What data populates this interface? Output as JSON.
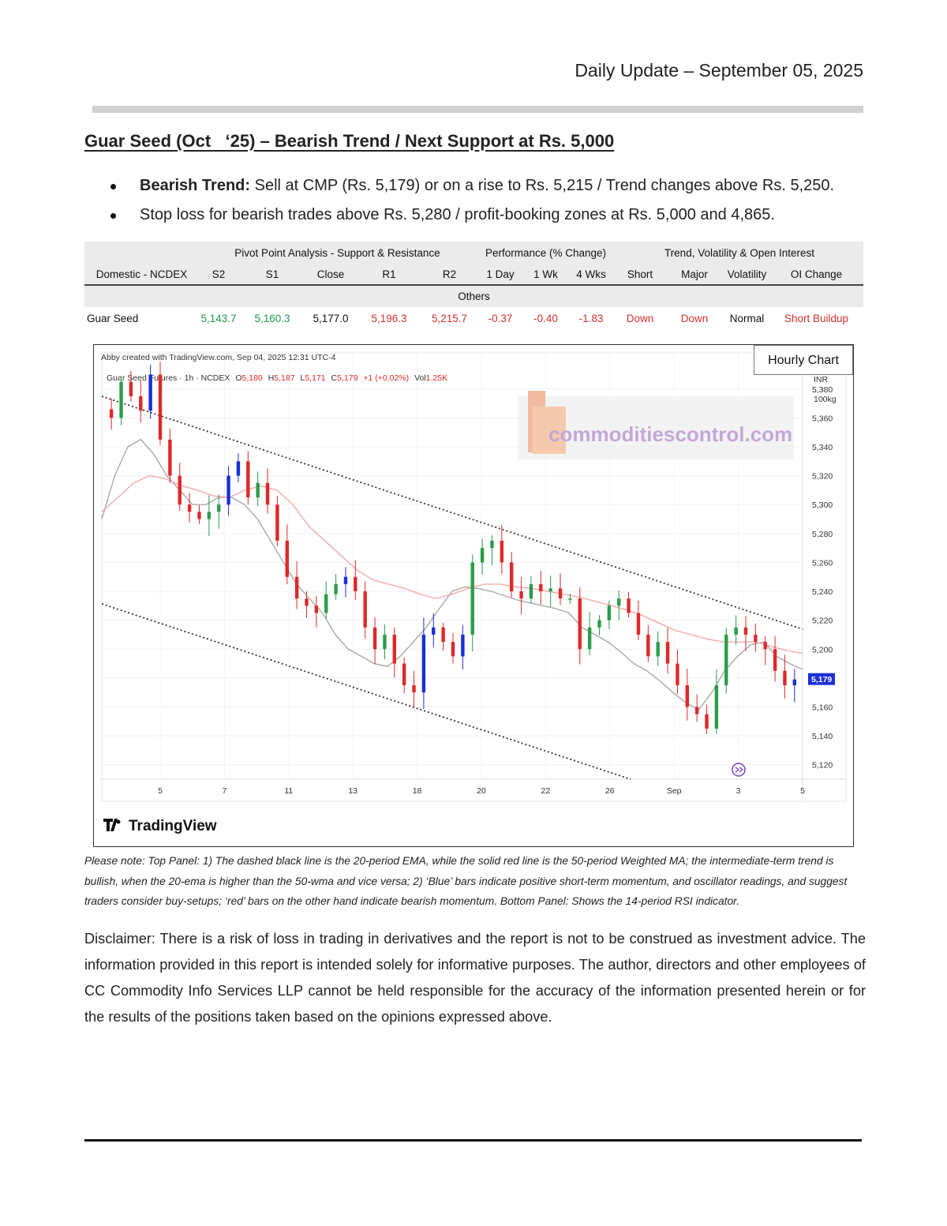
{
  "header": {
    "date_text": "Daily Update – September 05, 2025"
  },
  "title": "Guar Seed (Oct   ‘25) – Bearish Trend / Next Support at Rs. 5,000",
  "bullets": [
    {
      "bold": "Bearish Trend:",
      "text": " Sell at CMP (Rs. 5,179) or on a rise to Rs. 5,215 / Trend changes above Rs. 5,250."
    },
    {
      "bold": "",
      "text": "Stop loss for bearish trades above Rs. 5,280 / profit-booking zones at Rs. 5,000 and 4,865."
    }
  ],
  "table": {
    "groups": {
      "pivot": "Pivot Point Analysis - Support & Resistance",
      "performance": "Performance (% Change)",
      "trend": "Trend, Volatility & Open Interest"
    },
    "headers": [
      "Domestic - NCDEX",
      "S2",
      "S1",
      "Close",
      "R1",
      "R2",
      "1 Day",
      "1 Wk",
      "4 Wks",
      "Short",
      "Major",
      "Volatility",
      "OI Change"
    ],
    "category": "Others",
    "row": [
      "Guar Seed",
      "5,143.7",
      "5,160.3",
      "5,177.0",
      "5,196.3",
      "5,215.7",
      "-0.37",
      "-0.40",
      "-1.83",
      "Down",
      "Down",
      "Normal",
      "Short Buildup"
    ],
    "colors": {
      "positive": "#1e9a4a",
      "negative": "#d0312d"
    }
  },
  "chart": {
    "attribution": "Abby created with TradingView.com, Sep 04, 2025 12:31 UTC-4",
    "legend": {
      "symbol": "Guar Seed Futures · 1h · NCDEX",
      "o_label": "O",
      "o": "5,180",
      "h_label": "H",
      "h": "5,187",
      "l_label": "L",
      "l": "5,171",
      "c_label": "C",
      "c": "5,179",
      "change": "+1 (+0.02%)",
      "vol_label": "Vol",
      "vol": "1.25K"
    },
    "currency": "INR",
    "unit": "100kg",
    "last_price": "5,179",
    "watermark": "commoditiescontrol.com",
    "brand": "TradingView",
    "hourly_label": "Hourly Chart",
    "colors": {
      "up": "#2a9d4a",
      "down_red": "#e02828",
      "blue": "#1a2ed8",
      "ema": "#a8a8a8",
      "wma": "#f4a8a8"
    }
  },
  "chart_data": {
    "type": "candlestick",
    "title": "",
    "ylim": [
      5110,
      5405
    ],
    "y_ticks": [
      5120,
      5140,
      5160,
      5180,
      5200,
      5220,
      5240,
      5260,
      5280,
      5300,
      5320,
      5340,
      5360,
      5380
    ],
    "y_tick_labels": [
      "5,120",
      "5,140",
      "5,160",
      "5,180",
      "5,200",
      "5,220",
      "5,240",
      "5,260",
      "5,280",
      "5,300",
      "5,320",
      "5,340",
      "5,360",
      "5,380"
    ],
    "x_ticks": [
      "5",
      "7",
      "11",
      "13",
      "18",
      "20",
      "22",
      "26",
      "Sep",
      "3",
      "5"
    ],
    "close_path": [
      5360,
      5385,
      5375,
      5365,
      5390,
      5345,
      5320,
      5300,
      5295,
      5290,
      5295,
      5300,
      5320,
      5330,
      5305,
      5315,
      5300,
      5275,
      5250,
      5235,
      5230,
      5225,
      5238,
      5245,
      5250,
      5240,
      5215,
      5200,
      5210,
      5190,
      5175,
      5170,
      5210,
      5215,
      5205,
      5195,
      5210,
      5260,
      5270,
      5275,
      5260,
      5240,
      5235,
      5245,
      5240,
      5242,
      5235,
      5235,
      5200,
      5215,
      5220,
      5230,
      5235,
      5225,
      5210,
      5195,
      5205,
      5190,
      5175,
      5160,
      5155,
      5145,
      5175,
      5210,
      5215,
      5210,
      5205,
      5200,
      5185,
      5175,
      5179
    ],
    "series": [
      {
        "name": "EMA 20",
        "values": [
          5290,
          5320,
          5340,
          5345,
          5335,
          5320,
          5310,
          5300,
          5300,
          5305,
          5305,
          5300,
          5290,
          5275,
          5260,
          5245,
          5235,
          5225,
          5210,
          5200,
          5195,
          5190,
          5188,
          5195,
          5205,
          5215,
          5228,
          5240,
          5243,
          5242,
          5240,
          5237,
          5234,
          5232,
          5230,
          5228,
          5225,
          5215,
          5210,
          5205,
          5198,
          5190,
          5185,
          5178,
          5170,
          5163,
          5158,
          5170,
          5185,
          5195,
          5203,
          5205,
          5195,
          5190,
          5186
        ]
      },
      {
        "name": "WMA 50",
        "values": [
          5295,
          5305,
          5315,
          5320,
          5318,
          5313,
          5310,
          5306,
          5305,
          5310,
          5313,
          5310,
          5300,
          5285,
          5275,
          5265,
          5255,
          5248,
          5245,
          5242,
          5238,
          5235,
          5238,
          5242,
          5245,
          5245,
          5243,
          5242,
          5240,
          5238,
          5236,
          5233,
          5230,
          5227,
          5223,
          5218,
          5213,
          5210,
          5207,
          5205,
          5205,
          5205,
          5202,
          5199,
          5197
        ]
      }
    ],
    "annotations": {
      "channel": "descending",
      "last_price_label": "5,179"
    }
  },
  "note": "Please note: Top Panel: 1) The dashed black line is the 20-period EMA, while the solid red line is the 50-period Weighted MA; the intermediate-term trend is bullish, when the 20-ema is higher than the 50-wma and vice versa; 2) ‘Blue’ bars indicate positive short-term momentum, and oscillator readings, and suggest traders consider buy-setups; ‘red’ bars on the other hand indicate bearish momentum. Bottom Panel: Shows the 14-period RSI indicator.",
  "disclaimer": "Disclaimer: There is a risk of loss in trading in derivatives and the report is not to be construed as investment advice. The information provided in this report is intended solely for informative purposes. The author, directors and other employees of CC Commodity Info Services LLP cannot be held responsible for the accuracy of the information presented herein or for the results of the positions taken based on the opinions expressed above."
}
